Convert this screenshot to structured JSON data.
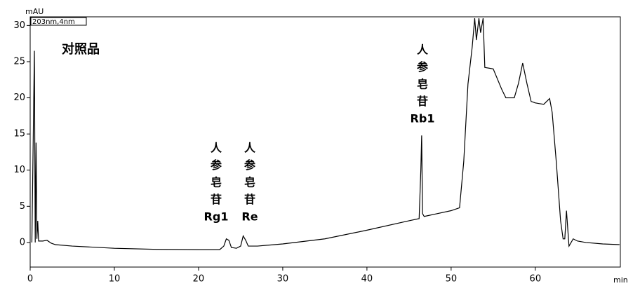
{
  "chart_data": {
    "type": "line",
    "y_label": "mAU",
    "x_label": "min",
    "xlim": [
      0,
      70.1
    ],
    "ylim": [
      -3.4,
      31.2
    ],
    "xticks": [
      0,
      10,
      20,
      30,
      40,
      50,
      60
    ],
    "yticks": [
      0,
      5,
      10,
      15,
      20,
      25,
      30
    ],
    "grid": false,
    "x": [
      0.2,
      0.5,
      0.6,
      0.7,
      0.8,
      0.9,
      1.0,
      1.5,
      2.0,
      2.5,
      3,
      5,
      10,
      15,
      20,
      22.5,
      23.0,
      23.3,
      23.6,
      23.9,
      24.5,
      25.0,
      25.3,
      25.6,
      25.9,
      27,
      30,
      35,
      40,
      45,
      46.2,
      46.4,
      46.5,
      46.6,
      46.8,
      48,
      50,
      51,
      51.5,
      52,
      52.5,
      52.8,
      53,
      53.3,
      53.5,
      53.8,
      54,
      55,
      56,
      56.5,
      57.5,
      58,
      58.5,
      59,
      59.5,
      60,
      61,
      61.7,
      62,
      62.5,
      63,
      63.3,
      63.5,
      63.7,
      64,
      64.5,
      65,
      66,
      68,
      70
    ],
    "series": [
      {
        "name": "203nm,4nm",
        "color": "#000000",
        "values": [
          0,
          26.5,
          0,
          13.8,
          0.5,
          3,
          0.2,
          0.2,
          0.3,
          -0.1,
          -0.3,
          -0.5,
          -0.8,
          -0.95,
          -1.0,
          -1.0,
          -0.5,
          0.5,
          0.3,
          -0.7,
          -0.8,
          -0.5,
          0.9,
          0.3,
          -0.5,
          -0.5,
          -0.2,
          0.5,
          1.7,
          3,
          3.3,
          10,
          14.8,
          4,
          3.6,
          3.9,
          4.4,
          4.8,
          11.2,
          21.9,
          27,
          31,
          28,
          31,
          29,
          31,
          24.2,
          24,
          21.2,
          20,
          20,
          22,
          24.8,
          22,
          19.5,
          19.3,
          19.1,
          19.9,
          18,
          11,
          3,
          0.5,
          0.5,
          4.4,
          -0.5,
          0.5,
          0.2,
          0,
          -0.2,
          -0.3
        ]
      }
    ],
    "annotations": [
      {
        "lines": [
          "对照品"
        ]
      },
      {
        "lines": [
          "人",
          "参",
          "皂",
          "苷",
          "Rg1"
        ]
      },
      {
        "lines": [
          "人",
          "参",
          "皂",
          "苷",
          "Re"
        ]
      },
      {
        "lines": [
          "人",
          "参",
          "皂",
          "苷",
          "Rb1"
        ]
      }
    ]
  }
}
